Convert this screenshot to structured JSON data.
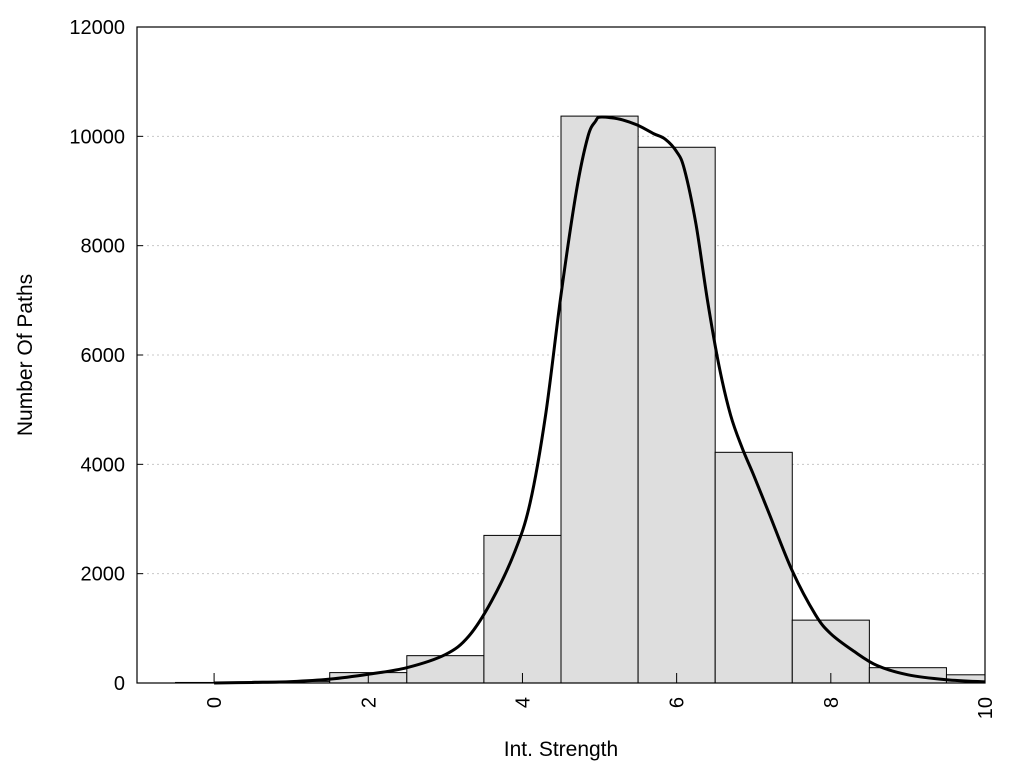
{
  "chart_data": {
    "type": "bar",
    "title": "",
    "xlabel": "Int. Strength",
    "ylabel": "Number Of Paths",
    "xlim": [
      -1,
      10
    ],
    "ylim": [
      0,
      12000
    ],
    "x_ticks": [
      0,
      2,
      4,
      6,
      8,
      10
    ],
    "y_ticks": [
      0,
      2000,
      4000,
      6000,
      8000,
      10000,
      12000
    ],
    "grid": "horizontal dotted",
    "bar_width": 1,
    "bars": [
      {
        "x": 0,
        "value": 10
      },
      {
        "x": 1,
        "value": 30
      },
      {
        "x": 2,
        "value": 190
      },
      {
        "x": 3,
        "value": 500
      },
      {
        "x": 4,
        "value": 2700
      },
      {
        "x": 5,
        "value": 10370
      },
      {
        "x": 6,
        "value": 9800
      },
      {
        "x": 7,
        "value": 4220
      },
      {
        "x": 8,
        "value": 1150
      },
      {
        "x": 9,
        "value": 280
      },
      {
        "x": 10,
        "value": 150
      }
    ],
    "series": [
      {
        "type": "line",
        "x": [
          0,
          0.5,
          1,
          1.5,
          2,
          2.5,
          3,
          3.3,
          3.6,
          3.9,
          4.1,
          4.3,
          4.5,
          4.7,
          4.85,
          4.95,
          5.0,
          5.15,
          5.3,
          5.5,
          5.7,
          5.85,
          6.0,
          6.1,
          6.25,
          6.4,
          6.55,
          6.7,
          6.85,
          7.0,
          7.2,
          7.5,
          7.8,
          8.0,
          8.3,
          8.6,
          9.0,
          9.5,
          10.0
        ],
        "values": [
          0,
          10,
          25,
          70,
          160,
          280,
          520,
          850,
          1500,
          2400,
          3300,
          4900,
          7100,
          9000,
          10000,
          10280,
          10350,
          10340,
          10300,
          10200,
          10050,
          9950,
          9720,
          9400,
          8400,
          7000,
          5800,
          4900,
          4300,
          3800,
          3100,
          2050,
          1250,
          900,
          580,
          320,
          150,
          60,
          20
        ]
      }
    ]
  }
}
